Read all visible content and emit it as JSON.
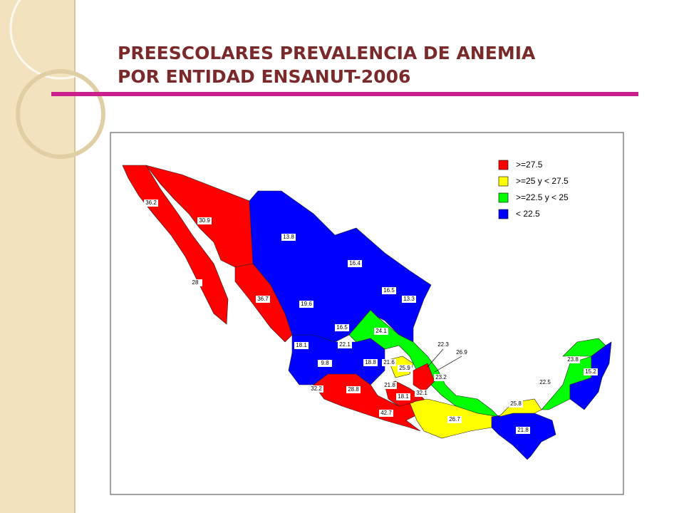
{
  "title": [
    "PREESCOLARES PREVALENCIA DE ANEMIA",
    "POR ENTIDAD ENSANUT-2006"
  ],
  "legend": [
    ">=27.5",
    ">=25 y < 27.5",
    ">=22.5 y < 25",
    "< 22.5"
  ],
  "state_values": [
    "36.2",
    "30.9",
    "13.8",
    "16.4",
    "16.5",
    "13.3",
    "28",
    "36.7",
    "19.6",
    "16.5",
    "24.1",
    "22.3",
    "26.9",
    "18.1",
    "22.1",
    "18.8",
    "21.6",
    "25.9",
    "23.2",
    "9.8",
    "21.8",
    "32.1",
    "32.2",
    "28.8",
    "18.1",
    "42.7",
    "26.7",
    "25.8",
    "22.5",
    "23.8",
    "15.2",
    "21.8"
  ]
}
